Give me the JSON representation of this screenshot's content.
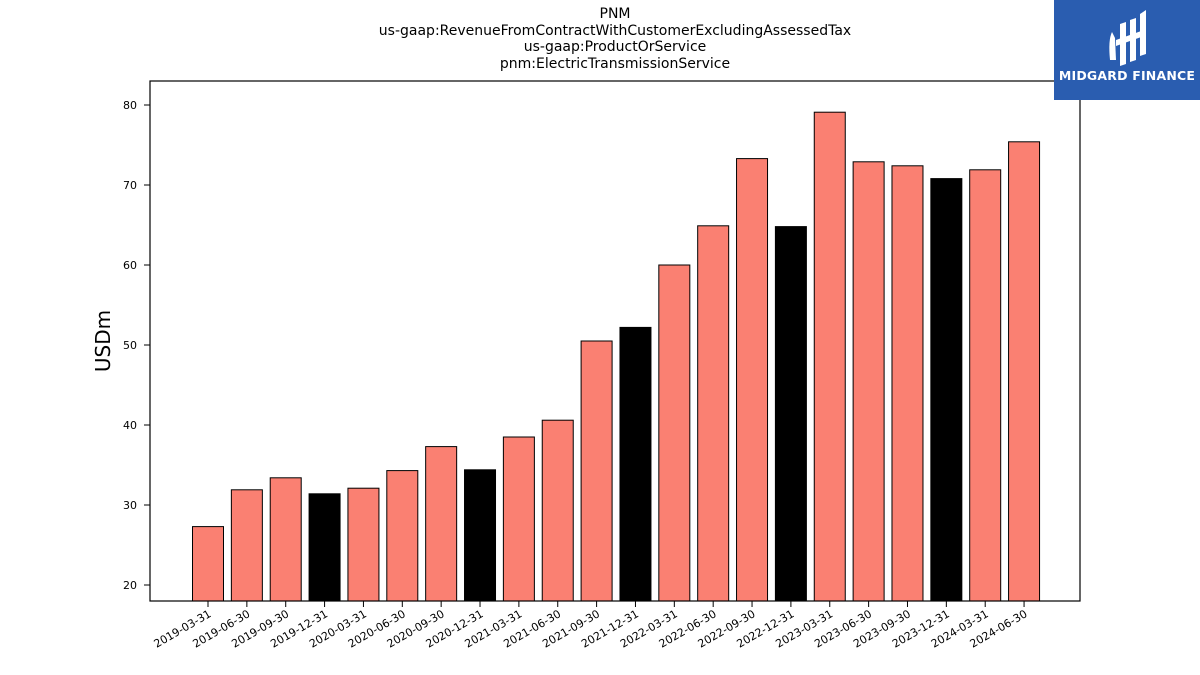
{
  "chart_data": {
    "type": "bar",
    "title": [
      "PNM",
      "us-gaap:RevenueFromContractWithCustomerExcludingAssessedTax",
      "us-gaap:ProductOrService",
      "pnm:ElectricTransmissionService"
    ],
    "xlabel": "",
    "ylabel": "USDm",
    "ylim": [
      18,
      83
    ],
    "yticks": [
      20,
      30,
      40,
      50,
      60,
      70,
      80
    ],
    "grid": false,
    "categories": [
      "2019-03-31",
      "2019-06-30",
      "2019-09-30",
      "2019-12-31",
      "2020-03-31",
      "2020-06-30",
      "2020-09-30",
      "2020-12-31",
      "2021-03-31",
      "2021-06-30",
      "2021-09-30",
      "2021-12-31",
      "2022-03-31",
      "2022-06-30",
      "2022-09-30",
      "2022-12-31",
      "2023-03-31",
      "2023-06-30",
      "2023-09-30",
      "2023-12-31",
      "2024-03-31",
      "2024-06-30"
    ],
    "values": [
      27.3,
      31.9,
      33.4,
      31.4,
      32.1,
      34.3,
      37.3,
      34.4,
      38.5,
      40.6,
      50.5,
      52.2,
      60.0,
      64.9,
      73.3,
      64.8,
      79.1,
      72.9,
      72.4,
      70.8,
      71.9,
      75.4
    ],
    "colors": [
      "#fa8072",
      "#fa8072",
      "#fa8072",
      "#000000",
      "#fa8072",
      "#fa8072",
      "#fa8072",
      "#000000",
      "#fa8072",
      "#fa8072",
      "#fa8072",
      "#000000",
      "#fa8072",
      "#fa8072",
      "#fa8072",
      "#000000",
      "#fa8072",
      "#fa8072",
      "#fa8072",
      "#000000",
      "#fa8072",
      "#fa8072"
    ]
  },
  "logo": {
    "text": "MIDGARD FINANCE",
    "background": "#2a5db0"
  }
}
